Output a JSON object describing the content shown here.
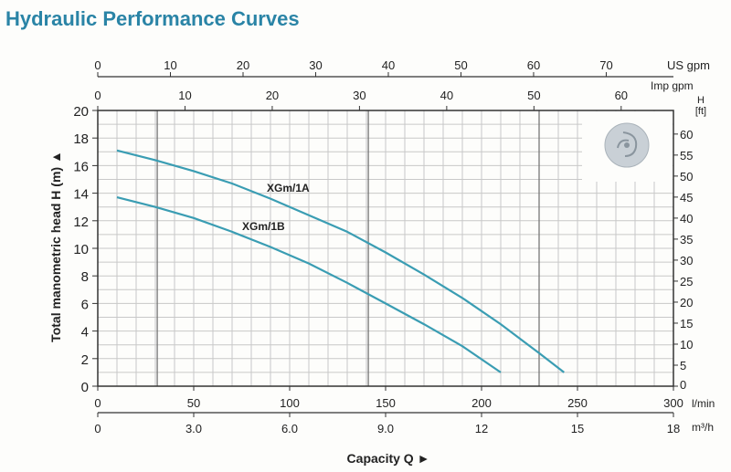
{
  "chart_data": {
    "type": "line",
    "title": "Hydraulic Performance Curves",
    "xlabel": "Capacity Q",
    "ylabel": "Total manometric head H (m)",
    "xlim": [
      0,
      300
    ],
    "ylim": [
      0,
      20
    ],
    "grid": true,
    "x_unit": "l/min",
    "x_ticks": [
      0,
      50,
      100,
      150,
      200,
      250,
      300
    ],
    "y_ticks": [
      0,
      2,
      4,
      6,
      8,
      10,
      12,
      14,
      16,
      18,
      20
    ],
    "secondary_axes": {
      "us_gpm": {
        "unit": "US gpm",
        "ticks": [
          0,
          10,
          20,
          30,
          40,
          50,
          60,
          70
        ],
        "factor": 0.26417
      },
      "imp_gpm": {
        "unit": "Imp gpm",
        "ticks": [
          0,
          10,
          20,
          30,
          40,
          50,
          60
        ],
        "factor": 0.21997
      },
      "m3h": {
        "unit": "m³/h",
        "ticks": [
          "0",
          "3.0",
          "6.0",
          "9.0",
          "12",
          "15",
          "18"
        ],
        "factor": 0.06
      },
      "ft": {
        "unit": "H [ft]",
        "ticks": [
          0,
          5,
          10,
          15,
          20,
          25,
          30,
          35,
          40,
          45,
          50,
          55,
          60
        ],
        "factor": 3.2808
      }
    },
    "series": [
      {
        "name": "XGm/1A",
        "x": [
          10,
          30,
          50,
          70,
          90,
          110,
          130,
          150,
          170,
          190,
          210,
          230,
          243
        ],
        "y": [
          17.1,
          16.4,
          15.6,
          14.7,
          13.6,
          12.4,
          11.2,
          9.7,
          8.1,
          6.4,
          4.5,
          2.4,
          1.0
        ]
      },
      {
        "name": "XGm/1B",
        "x": [
          10,
          30,
          50,
          70,
          90,
          110,
          130,
          150,
          170,
          190,
          210
        ],
        "y": [
          13.7,
          13.0,
          12.2,
          11.2,
          10.1,
          8.9,
          7.5,
          6.0,
          4.5,
          2.9,
          1.0
        ]
      }
    ],
    "colors": {
      "curve": "#3a9db3",
      "title": "#2a84a6",
      "grid": "#c8c8c8",
      "major_grid": "#777777"
    }
  }
}
